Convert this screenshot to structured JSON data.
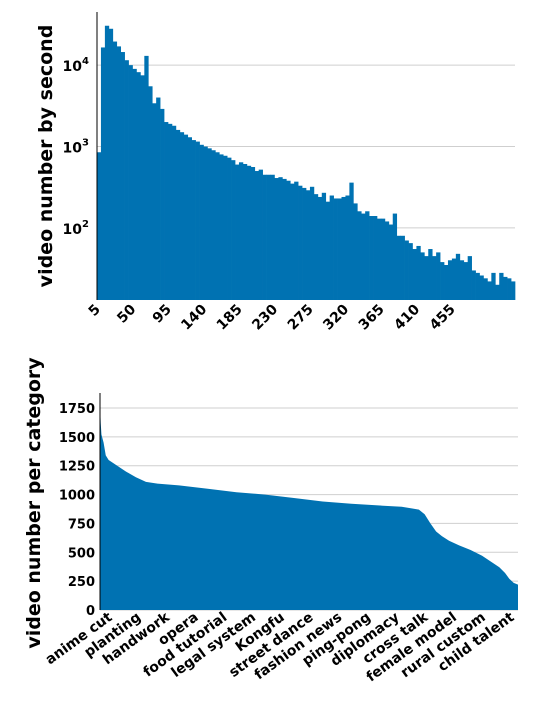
{
  "chart_data": [
    {
      "type": "bar",
      "ylabel": "video number by second",
      "y_scale": "log",
      "ylim": [
        13,
        45000
      ],
      "y_ticks": [
        {
          "value": 100,
          "base": "10",
          "exp": "2"
        },
        {
          "value": 1000,
          "base": "10",
          "exp": "3"
        },
        {
          "value": 10000,
          "base": "10",
          "exp": "4"
        }
      ],
      "grid": "horizontal",
      "bar_color": "#0072b2",
      "x_ticks": [
        {
          "bin": 0,
          "label": "5"
        },
        {
          "bin": 9,
          "label": "50"
        },
        {
          "bin": 18,
          "label": "95"
        },
        {
          "bin": 27,
          "label": "140"
        },
        {
          "bin": 36,
          "label": "185"
        },
        {
          "bin": 45,
          "label": "230"
        },
        {
          "bin": 54,
          "label": "275"
        },
        {
          "bin": 63,
          "label": "320"
        },
        {
          "bin": 72,
          "label": "365"
        },
        {
          "bin": 81,
          "label": "410"
        },
        {
          "bin": 90,
          "label": "455"
        }
      ],
      "values": [
        850,
        16500,
        30500,
        28000,
        19500,
        17000,
        14500,
        11500,
        10000,
        9000,
        8200,
        7500,
        13000,
        5500,
        3400,
        4000,
        2900,
        2000,
        1900,
        1800,
        1600,
        1500,
        1400,
        1300,
        1200,
        1150,
        1050,
        1000,
        950,
        900,
        850,
        800,
        770,
        730,
        680,
        600,
        640,
        610,
        580,
        560,
        500,
        520,
        450,
        450,
        450,
        410,
        420,
        400,
        380,
        350,
        370,
        330,
        310,
        290,
        320,
        260,
        240,
        270,
        210,
        250,
        230,
        230,
        240,
        250,
        360,
        200,
        160,
        150,
        160,
        140,
        140,
        130,
        130,
        120,
        110,
        150,
        80,
        80,
        70,
        65,
        55,
        60,
        50,
        45,
        55,
        45,
        50,
        38,
        35,
        40,
        42,
        48,
        40,
        38,
        45,
        30,
        28,
        26,
        24,
        22,
        28,
        20,
        28,
        25,
        24,
        22
      ]
    },
    {
      "type": "bar",
      "ylabel": "video number per category",
      "ylim": [
        0,
        1880
      ],
      "y_ticks": [
        0,
        250,
        500,
        750,
        1000,
        1250,
        1500,
        1750
      ],
      "grid": "horizontal",
      "bar_color": "#0072b2",
      "curve": [
        [
          0,
          1790
        ],
        [
          0.5,
          1620
        ],
        [
          1,
          1520
        ],
        [
          2.5,
          1450
        ],
        [
          4,
          1340
        ],
        [
          6,
          1300
        ],
        [
          12,
          1250
        ],
        [
          18,
          1200
        ],
        [
          25,
          1150
        ],
        [
          32,
          1110
        ],
        [
          40,
          1095
        ],
        [
          55,
          1080
        ],
        [
          75,
          1050
        ],
        [
          95,
          1020
        ],
        [
          115,
          1000
        ],
        [
          135,
          970
        ],
        [
          155,
          940
        ],
        [
          175,
          920
        ],
        [
          195,
          905
        ],
        [
          210,
          895
        ],
        [
          222,
          870
        ],
        [
          226,
          830
        ],
        [
          230,
          750
        ],
        [
          234,
          680
        ],
        [
          238,
          640
        ],
        [
          243,
          600
        ],
        [
          250,
          560
        ],
        [
          258,
          520
        ],
        [
          266,
          470
        ],
        [
          272,
          420
        ],
        [
          278,
          370
        ],
        [
          282,
          320
        ],
        [
          285,
          270
        ],
        [
          288,
          235
        ],
        [
          291,
          220
        ]
      ],
      "categories_shown": [
        "anime cut",
        "planting",
        "handwork",
        "opera",
        "food tutorial",
        "legal system",
        "Kongfu",
        "street dance",
        "fashion news",
        "ping-pong",
        "diplomacy",
        "cross talk",
        "female model",
        "rural custom",
        "child talent"
      ]
    }
  ]
}
